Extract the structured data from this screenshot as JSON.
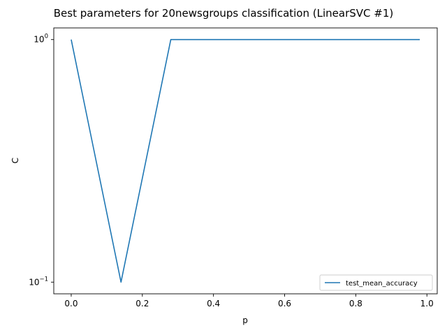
{
  "chart_data": {
    "type": "line",
    "title": "Best parameters for 20newsgroups classification (LinearSVC #1)",
    "xlabel": "p",
    "ylabel": "C",
    "yscale": "log",
    "xlim": [
      -0.049,
      1.029
    ],
    "ylim": [
      0.0895,
      1.117
    ],
    "xticks": [
      0.0,
      0.2,
      0.4,
      0.6,
      0.8,
      1.0
    ],
    "xtick_labels": [
      "0.0",
      "0.2",
      "0.4",
      "0.6",
      "0.8",
      "1.0"
    ],
    "yticks": [
      0.1,
      1.0
    ],
    "ytick_labels": [
      {
        "base": "10",
        "exp": "−1"
      },
      {
        "base": "10",
        "exp": "0"
      }
    ],
    "grid": false,
    "legend_position": "lower right",
    "series": [
      {
        "name": "test_mean_accuracy",
        "color": "#1f77b4",
        "x": [
          0.0,
          0.14,
          0.28,
          0.42,
          0.56,
          0.7,
          0.84,
          0.98
        ],
        "y": [
          1.0,
          0.1,
          1.0,
          1.0,
          1.0,
          1.0,
          1.0,
          1.0
        ]
      }
    ]
  }
}
